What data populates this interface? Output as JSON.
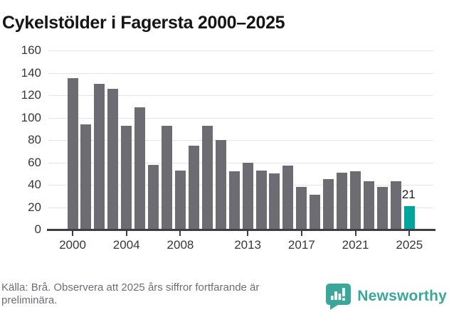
{
  "header": {
    "title": "Cykelstölder i Fagersta 2000–2025"
  },
  "chart_data": {
    "type": "bar",
    "title": "Cykelstölder i Fagersta 2000–2025",
    "x": [
      2000,
      2001,
      2002,
      2003,
      2004,
      2005,
      2006,
      2007,
      2008,
      2009,
      2010,
      2011,
      2012,
      2013,
      2014,
      2015,
      2016,
      2017,
      2018,
      2019,
      2020,
      2021,
      2022,
      2023,
      2024,
      2025
    ],
    "values": [
      135,
      94,
      130,
      126,
      93,
      109,
      58,
      93,
      53,
      75,
      93,
      80,
      52,
      60,
      53,
      50,
      57,
      38,
      31,
      45,
      51,
      52,
      43,
      38,
      43,
      21
    ],
    "ylim": [
      0,
      160
    ],
    "y_ticks": [
      0,
      20,
      40,
      60,
      80,
      100,
      120,
      140,
      160
    ],
    "x_tick_labels": [
      "2000",
      "2004",
      "2008",
      "2013",
      "2017",
      "2021",
      "2025"
    ],
    "grid": true,
    "legend_position": "none",
    "highlight": {
      "year": 2025,
      "label": "21"
    },
    "colors": {
      "bar": "#6d6c72",
      "highlight": "#00a59b",
      "gridline": "#e4e4e4",
      "axis": "#3d3d42",
      "tick_label": "#36363c",
      "annotation": "#1f1f23"
    }
  },
  "footer": {
    "source_note": "Källa: Brå. Observera att 2025 års siffror fortfarande är preliminära.",
    "brand": {
      "name": "Newsworthy",
      "color": "#3aa79b",
      "icon": "speech-bubble-bar-chart-icon"
    }
  }
}
